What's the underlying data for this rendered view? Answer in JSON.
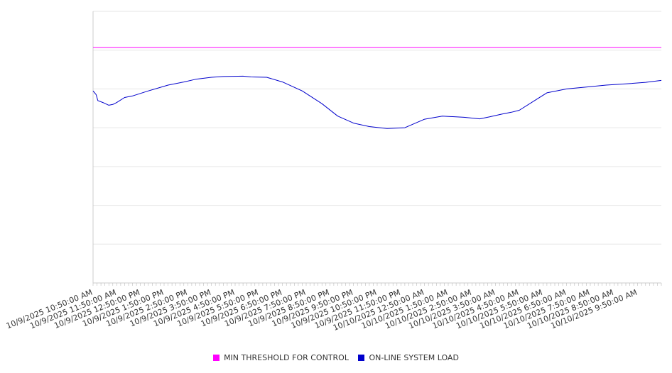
{
  "chart_data": {
    "type": "line",
    "title": "",
    "xlabel": "",
    "ylabel": "",
    "ylim": [
      0,
      7
    ],
    "grid": true,
    "legend_position": "bottom",
    "x_range_minutes": [
      0,
      1440
    ],
    "x_ticks": [
      "10/9/2025 10:50:00 AM",
      "10/9/2025 11:50:00 AM",
      "10/9/2025 12:50:00 PM",
      "10/9/2025 1:50:00 PM",
      "10/9/2025 2:50:00 PM",
      "10/9/2025 3:50:00 PM",
      "10/9/2025 4:50:00 PM",
      "10/9/2025 5:50:00 PM",
      "10/9/2025 6:50:00 PM",
      "10/9/2025 7:50:00 PM",
      "10/9/2025 8:50:00 PM",
      "10/9/2025 9:50:00 PM",
      "10/9/2025 10:50:00 PM",
      "10/9/2025 11:50:00 PM",
      "10/10/2025 12:50:00 AM",
      "10/10/2025 1:50:00 AM",
      "10/10/2025 2:50:00 AM",
      "10/10/2025 3:50:00 AM",
      "10/10/2025 4:50:00 AM",
      "10/10/2025 5:50:00 AM",
      "10/10/2025 6:50:00 AM",
      "10/10/2025 7:50:00 AM",
      "10/10/2025 8:50:00 AM",
      "10/10/2025 9:50:00 AM"
    ],
    "series": [
      {
        "name": "MIN THRESHOLD FOR CONTROL",
        "color": "#ff00ff",
        "x_minutes": [
          0,
          1440
        ],
        "values": [
          6.07,
          6.07
        ]
      },
      {
        "name": "ON-LINE SYSTEM LOAD",
        "color": "#0000cc",
        "x_minutes": [
          0,
          8,
          12,
          25,
          40,
          50,
          60,
          80,
          100,
          140,
          190,
          230,
          260,
          300,
          330,
          380,
          400,
          440,
          480,
          530,
          580,
          620,
          660,
          700,
          745,
          790,
          840,
          885,
          940,
          980,
          1005,
          1035,
          1060,
          1080,
          1150,
          1200,
          1250,
          1300,
          1350,
          1400,
          1440
        ],
        "values": [
          4.95,
          4.85,
          4.7,
          4.65,
          4.58,
          4.6,
          4.65,
          4.78,
          4.82,
          4.95,
          5.1,
          5.18,
          5.25,
          5.3,
          5.32,
          5.33,
          5.31,
          5.3,
          5.18,
          4.95,
          4.62,
          4.3,
          4.12,
          4.03,
          3.98,
          4.0,
          4.22,
          4.3,
          4.27,
          4.23,
          4.28,
          4.35,
          4.4,
          4.45,
          4.9,
          5.0,
          5.05,
          5.1,
          5.13,
          5.17,
          5.22
        ]
      }
    ]
  }
}
